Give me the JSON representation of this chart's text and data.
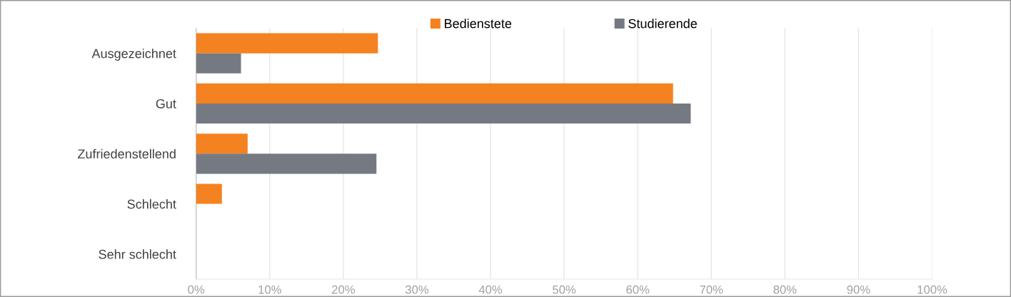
{
  "chart_data": {
    "type": "bar",
    "orientation": "horizontal",
    "categories": [
      "Ausgezeichnet",
      "Gut",
      "Zufriedenstellend",
      "Schlecht",
      "Sehr schlecht"
    ],
    "series": [
      {
        "name": "Bedienstete",
        "color": "#f58220",
        "values": [
          24.7,
          64.8,
          7.0,
          3.5,
          0
        ]
      },
      {
        "name": "Studierende",
        "color": "#757a82",
        "values": [
          6.1,
          67.2,
          24.5,
          0,
          0
        ]
      }
    ],
    "xlim": [
      0,
      100
    ],
    "xticks": [
      {
        "value": 0,
        "label": "0%"
      },
      {
        "value": 10,
        "label": "10%"
      },
      {
        "value": 20,
        "label": "20%"
      },
      {
        "value": 30,
        "label": "30%"
      },
      {
        "value": 40,
        "label": "40%"
      },
      {
        "value": 50,
        "label": "50%"
      },
      {
        "value": 60,
        "label": "60%"
      },
      {
        "value": 70,
        "label": "70%"
      },
      {
        "value": 80,
        "label": "80%"
      },
      {
        "value": 90,
        "label": "90%"
      },
      {
        "value": 100,
        "label": "100%"
      }
    ],
    "grid": "x",
    "legend": "top"
  }
}
